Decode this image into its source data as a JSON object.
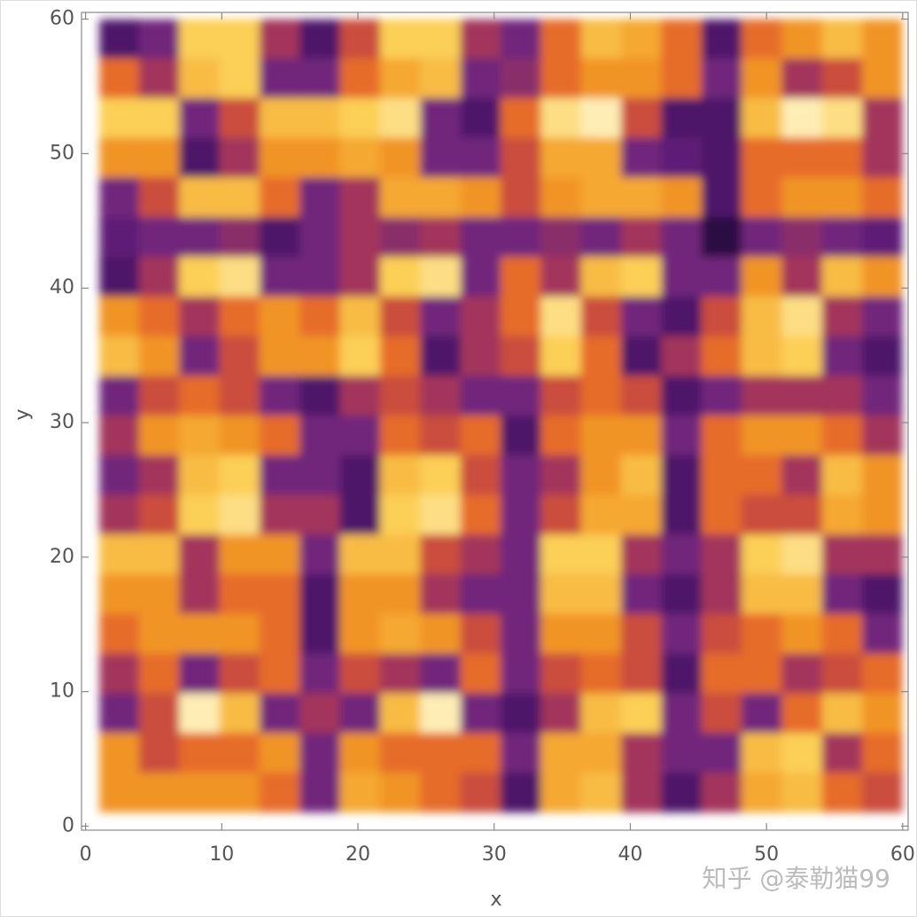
{
  "chart_data": {
    "type": "heatmap",
    "xlabel": "x",
    "ylabel": "y",
    "watermark": "知乎 @泰勒猫99",
    "xlim": [
      -0.3,
      60.4
    ],
    "ylim": [
      -0.3,
      60.5
    ],
    "xticks": [
      0,
      10,
      20,
      30,
      40,
      50,
      60
    ],
    "yticks": [
      0,
      10,
      20,
      30,
      40,
      50,
      60
    ],
    "colormap": [
      "#0b0410",
      "#3a1159",
      "#6a2480",
      "#b13a52",
      "#e3602a",
      "#f39a26",
      "#fcd25a",
      "#fffbe6"
    ],
    "x": [
      2.5,
      5.4,
      8.4,
      11.3,
      14.3,
      17.2,
      20.2,
      23.1,
      26.1,
      29,
      32,
      34.9,
      37.9,
      40.8,
      43.8,
      46.7,
      49.7,
      52.6,
      55.6,
      58.5
    ],
    "y": [
      58.5,
      55.6,
      52.6,
      49.7,
      46.7,
      43.8,
      40.8,
      37.9,
      34.9,
      32,
      29,
      26.1,
      23.1,
      20.2,
      17.2,
      14.3,
      11.3,
      8.4,
      5.4,
      2.5
    ],
    "z": [
      [
        0.2,
        0.3,
        0.85,
        0.85,
        0.4,
        0.2,
        0.5,
        0.85,
        0.85,
        0.4,
        0.3,
        0.6,
        0.8,
        0.75,
        0.6,
        0.2,
        0.6,
        0.7,
        0.8,
        0.7
      ],
      [
        0.6,
        0.4,
        0.8,
        0.85,
        0.3,
        0.3,
        0.6,
        0.75,
        0.8,
        0.3,
        0.35,
        0.6,
        0.7,
        0.7,
        0.6,
        0.3,
        0.7,
        0.4,
        0.5,
        0.7
      ],
      [
        0.85,
        0.85,
        0.3,
        0.5,
        0.8,
        0.8,
        0.85,
        0.9,
        0.3,
        0.2,
        0.6,
        0.9,
        0.95,
        0.5,
        0.2,
        0.2,
        0.8,
        0.95,
        0.9,
        0.4
      ],
      [
        0.7,
        0.7,
        0.2,
        0.4,
        0.7,
        0.7,
        0.75,
        0.7,
        0.3,
        0.3,
        0.5,
        0.75,
        0.75,
        0.3,
        0.25,
        0.2,
        0.6,
        0.6,
        0.6,
        0.4
      ],
      [
        0.3,
        0.5,
        0.8,
        0.8,
        0.6,
        0.3,
        0.4,
        0.75,
        0.75,
        0.7,
        0.5,
        0.7,
        0.75,
        0.75,
        0.7,
        0.2,
        0.6,
        0.7,
        0.7,
        0.6
      ],
      [
        0.25,
        0.3,
        0.3,
        0.35,
        0.2,
        0.3,
        0.4,
        0.35,
        0.4,
        0.3,
        0.3,
        0.35,
        0.3,
        0.4,
        0.3,
        0.1,
        0.3,
        0.35,
        0.3,
        0.25
      ],
      [
        0.2,
        0.4,
        0.85,
        0.9,
        0.3,
        0.3,
        0.4,
        0.85,
        0.9,
        0.3,
        0.6,
        0.4,
        0.8,
        0.85,
        0.3,
        0.3,
        0.7,
        0.4,
        0.8,
        0.7
      ],
      [
        0.7,
        0.6,
        0.4,
        0.6,
        0.7,
        0.6,
        0.8,
        0.5,
        0.3,
        0.4,
        0.6,
        0.9,
        0.5,
        0.3,
        0.2,
        0.5,
        0.8,
        0.9,
        0.4,
        0.3
      ],
      [
        0.8,
        0.7,
        0.3,
        0.5,
        0.7,
        0.7,
        0.85,
        0.6,
        0.2,
        0.4,
        0.5,
        0.85,
        0.6,
        0.2,
        0.4,
        0.6,
        0.8,
        0.85,
        0.3,
        0.2
      ],
      [
        0.3,
        0.5,
        0.6,
        0.5,
        0.3,
        0.2,
        0.4,
        0.5,
        0.4,
        0.3,
        0.3,
        0.5,
        0.6,
        0.5,
        0.2,
        0.3,
        0.4,
        0.4,
        0.4,
        0.3
      ],
      [
        0.4,
        0.7,
        0.75,
        0.7,
        0.6,
        0.3,
        0.3,
        0.6,
        0.5,
        0.6,
        0.2,
        0.6,
        0.7,
        0.7,
        0.3,
        0.6,
        0.7,
        0.7,
        0.6,
        0.4
      ],
      [
        0.3,
        0.4,
        0.8,
        0.85,
        0.3,
        0.3,
        0.2,
        0.8,
        0.85,
        0.5,
        0.3,
        0.4,
        0.7,
        0.8,
        0.2,
        0.6,
        0.6,
        0.4,
        0.8,
        0.7
      ],
      [
        0.4,
        0.5,
        0.85,
        0.9,
        0.4,
        0.4,
        0.2,
        0.85,
        0.9,
        0.6,
        0.3,
        0.5,
        0.75,
        0.75,
        0.2,
        0.6,
        0.5,
        0.5,
        0.75,
        0.7
      ],
      [
        0.8,
        0.8,
        0.4,
        0.7,
        0.7,
        0.3,
        0.8,
        0.8,
        0.5,
        0.4,
        0.3,
        0.85,
        0.85,
        0.4,
        0.3,
        0.4,
        0.85,
        0.9,
        0.4,
        0.4
      ],
      [
        0.7,
        0.7,
        0.4,
        0.6,
        0.6,
        0.2,
        0.7,
        0.7,
        0.4,
        0.3,
        0.3,
        0.8,
        0.8,
        0.3,
        0.2,
        0.4,
        0.8,
        0.8,
        0.3,
        0.2
      ],
      [
        0.6,
        0.7,
        0.7,
        0.7,
        0.6,
        0.2,
        0.7,
        0.75,
        0.7,
        0.5,
        0.3,
        0.7,
        0.7,
        0.5,
        0.3,
        0.5,
        0.6,
        0.7,
        0.6,
        0.3
      ],
      [
        0.4,
        0.6,
        0.3,
        0.5,
        0.6,
        0.3,
        0.5,
        0.4,
        0.3,
        0.6,
        0.3,
        0.5,
        0.6,
        0.5,
        0.2,
        0.6,
        0.6,
        0.4,
        0.5,
        0.6
      ],
      [
        0.3,
        0.5,
        0.95,
        0.8,
        0.3,
        0.4,
        0.3,
        0.8,
        0.95,
        0.3,
        0.2,
        0.4,
        0.8,
        0.85,
        0.3,
        0.5,
        0.3,
        0.6,
        0.8,
        0.7
      ],
      [
        0.7,
        0.5,
        0.6,
        0.6,
        0.7,
        0.3,
        0.7,
        0.6,
        0.6,
        0.6,
        0.3,
        0.75,
        0.75,
        0.4,
        0.3,
        0.3,
        0.8,
        0.85,
        0.4,
        0.6
      ],
      [
        0.7,
        0.7,
        0.7,
        0.7,
        0.6,
        0.3,
        0.75,
        0.7,
        0.6,
        0.5,
        0.2,
        0.75,
        0.8,
        0.4,
        0.2,
        0.4,
        0.75,
        0.8,
        0.6,
        0.5
      ]
    ]
  }
}
